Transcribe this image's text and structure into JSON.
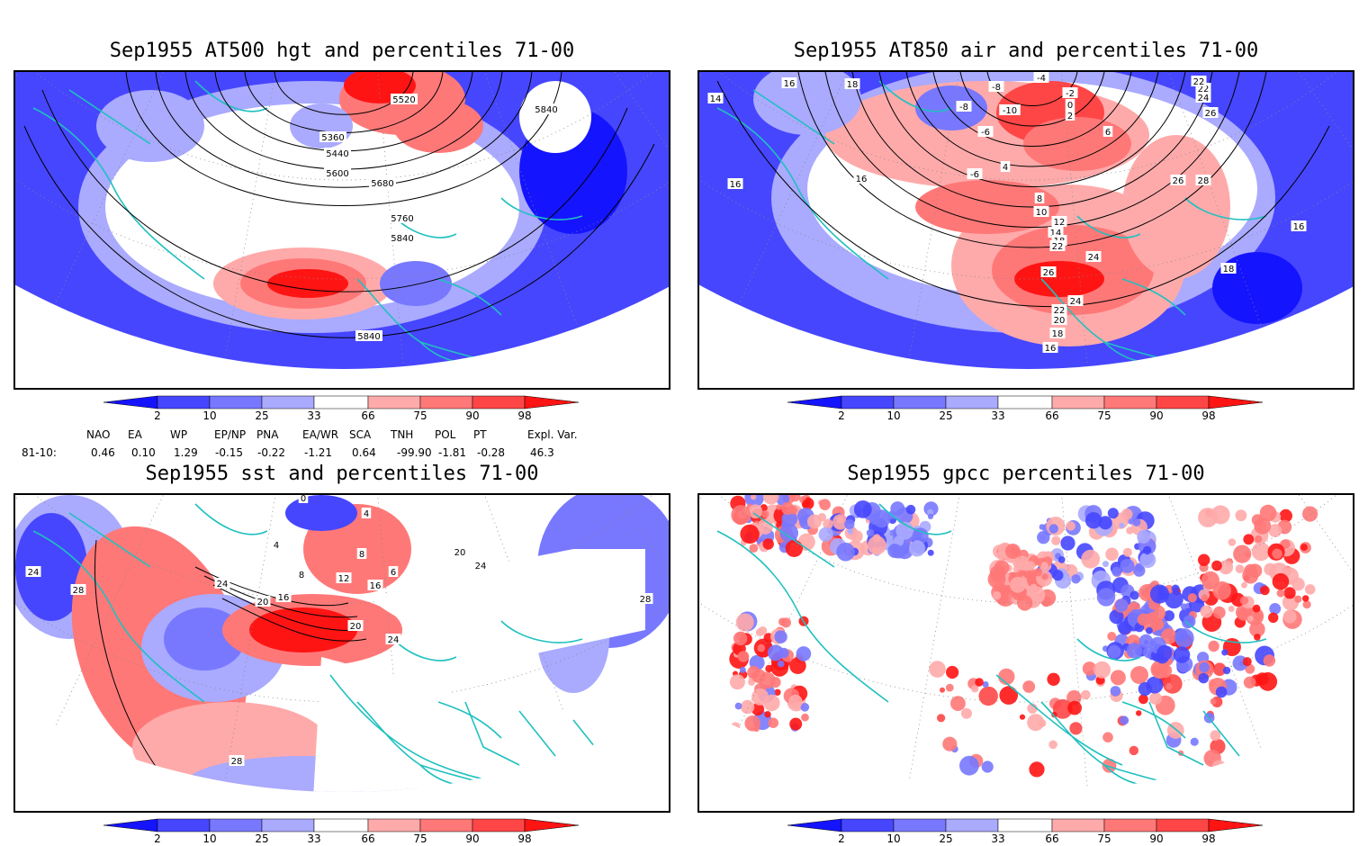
{
  "panels": [
    {
      "title": "Sep1955 AT500 hgt and percentiles 71-00",
      "contour_labels": [
        "5520",
        "5360",
        "5440",
        "5600",
        "5680",
        "5760",
        "5840",
        "5840",
        "5840"
      ]
    },
    {
      "title": "Sep1955 AT850 air and percentiles 71-00",
      "contour_labels": [
        "14",
        "16",
        "18",
        "-4",
        "-8",
        "-8",
        "-10",
        "-6",
        "-2",
        "0",
        "2",
        "6",
        "4",
        "-6",
        "8",
        "10",
        "12",
        "14",
        "18",
        "22",
        "24",
        "26",
        "26",
        "24",
        "22",
        "20",
        "18",
        "16",
        "16",
        "16",
        "16",
        "18",
        "22",
        "24",
        "26",
        "28",
        "22"
      ]
    },
    {
      "title": "Sep1955 sst and percentiles 71-00",
      "contour_labels": [
        "24",
        "28",
        "24",
        "20",
        "16",
        "12",
        "8",
        "4",
        "8",
        "4",
        "0",
        "6",
        "16",
        "20",
        "24",
        "20",
        "24",
        "28",
        "28"
      ]
    },
    {
      "title": "Sep1955 gpcc percentiles 71-00",
      "contour_labels": []
    }
  ],
  "colorbar": {
    "labels": [
      "2",
      "10",
      "25",
      "33",
      "66",
      "75",
      "90",
      "98"
    ],
    "colors": [
      "#1414ff",
      "#4646ff",
      "#7878ff",
      "#aaaaff",
      "#ffffff",
      "#ffaaaa",
      "#ff7878",
      "#ff4646",
      "#ff1414"
    ]
  },
  "indices": {
    "headers": [
      "NAO",
      "EA",
      "WP",
      "EP/NP",
      "PNA",
      "EA/WR",
      "SCA",
      "TNH",
      "POL",
      "PT",
      "Expl. Var."
    ],
    "row_label": "81-10:",
    "values": [
      "0.46",
      "0.10",
      "1.29",
      "-0.15",
      "-0.22",
      "-1.21",
      "0.64",
      "-99.90",
      "-1.81",
      "-0.28",
      "46.3"
    ]
  },
  "map_colors": {
    "coast": "#20c0c0",
    "contour": "#000000",
    "grid": "#888888"
  }
}
